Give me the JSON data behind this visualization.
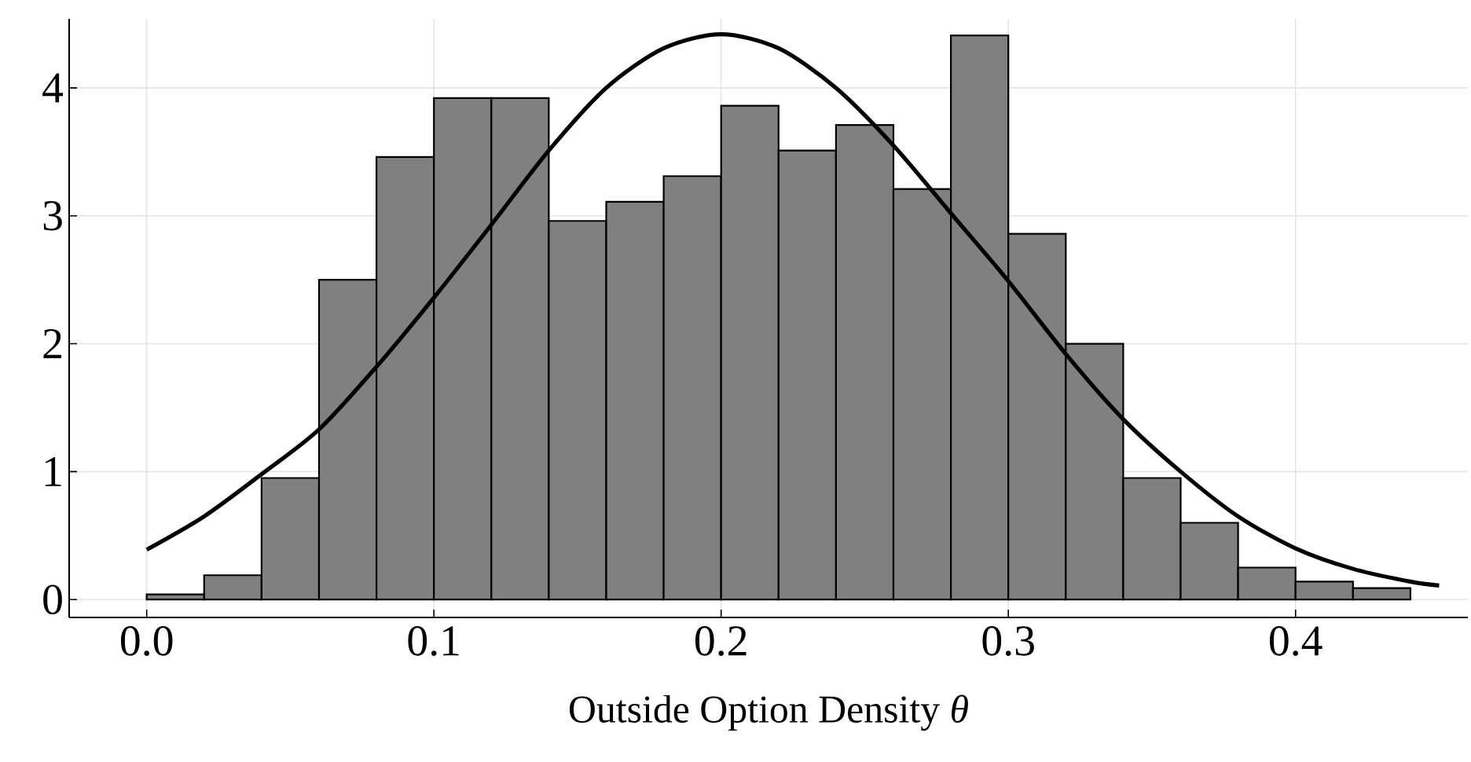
{
  "chart_data": {
    "type": "histogram",
    "xlabel": "Outside Option Density *θ*",
    "series": [
      {
        "color": "#808080",
        "bins": [
          0.0,
          0.02,
          0.04,
          0.06,
          0.08,
          0.1,
          0.12,
          0.14,
          0.16,
          0.18,
          0.2,
          0.22,
          0.24,
          0.26,
          0.28,
          0.3,
          0.32,
          0.34,
          0.36,
          0.38,
          0.4,
          0.42,
          0.44
        ],
        "values": [
          0.04,
          0.19,
          0.95,
          2.5,
          3.46,
          3.92,
          3.92,
          2.96,
          3.11,
          3.31,
          3.86,
          3.51,
          3.71,
          3.21,
          4.41,
          2.86,
          2.0,
          0.95,
          0.6,
          0.25,
          0.14,
          0.09
        ]
      },
      {
        "type": "line",
        "color": "#000000",
        "x": [
          0.0,
          0.02,
          0.04,
          0.06,
          0.08,
          0.1,
          0.12,
          0.14,
          0.16,
          0.18,
          0.2,
          0.22,
          0.24,
          0.26,
          0.28,
          0.3,
          0.32,
          0.34,
          0.36,
          0.38,
          0.4,
          0.42,
          0.44,
          0.45
        ],
        "values": [
          0.39,
          0.65,
          0.98,
          1.33,
          1.82,
          2.36,
          2.93,
          3.51,
          4.0,
          4.31,
          4.42,
          4.31,
          4.0,
          3.55,
          3.02,
          2.49,
          1.92,
          1.41,
          1.0,
          0.65,
          0.4,
          0.24,
          0.14,
          0.11
        ]
      }
    ],
    "xlim": [
      -0.027,
      0.46
    ],
    "ylim": [
      -0.14,
      4.54
    ],
    "xticks": [
      {
        "value": 0.0,
        "label": "0.0"
      },
      {
        "value": 0.1,
        "label": "0.1"
      },
      {
        "value": 0.2,
        "label": "0.2"
      },
      {
        "value": 0.3,
        "label": "0.3"
      },
      {
        "value": 0.4,
        "label": "0.4"
      }
    ],
    "yticks": [
      0,
      1,
      2,
      3,
      4
    ],
    "grid": true
  }
}
